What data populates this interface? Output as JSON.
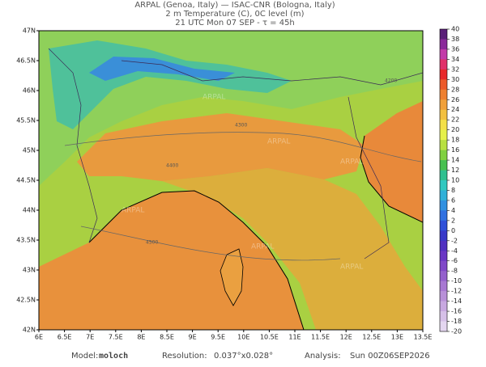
{
  "header": {
    "line1": "ARPAL (Genoa, Italy)  —  ISAC-CNR (Bologna, Italy)",
    "line2": "2 m Temperature (C), 0C level (m)",
    "line3": "21 UTC Mon 07 SEP  -  τ = 45h"
  },
  "map": {
    "lon_labels": [
      "6E",
      "6.5E",
      "7E",
      "7.5E",
      "8E",
      "8.5E",
      "9E",
      "9.5E",
      "10E",
      "10.5E",
      "11E",
      "11.5E",
      "12E",
      "12.5E",
      "13E",
      "13.5E"
    ],
    "lat_labels": [
      "47N",
      "46.5N",
      "46N",
      "45.5N",
      "45N",
      "44.5N",
      "44N",
      "43.5N",
      "43N",
      "42.5N",
      "42N"
    ],
    "watermark": "ARPAL",
    "contour_labels": [
      "4200",
      "4300",
      "4400",
      "4500"
    ]
  },
  "colorbar": {
    "labels": [
      40,
      38,
      36,
      34,
      32,
      30,
      28,
      26,
      24,
      22,
      20,
      18,
      16,
      14,
      12,
      10,
      8,
      6,
      4,
      2,
      0,
      -2,
      -4,
      -6,
      -8,
      -10,
      -12,
      -14,
      -16,
      -18,
      -20
    ]
  },
  "footer": {
    "model_label": "Model:",
    "model": "moloch",
    "resolution_label": "Resolution:",
    "resolution": "0.037°x0.028°",
    "analysis_label": "Analysis:",
    "analysis": "Sun 00Z06SEP2026"
  }
}
